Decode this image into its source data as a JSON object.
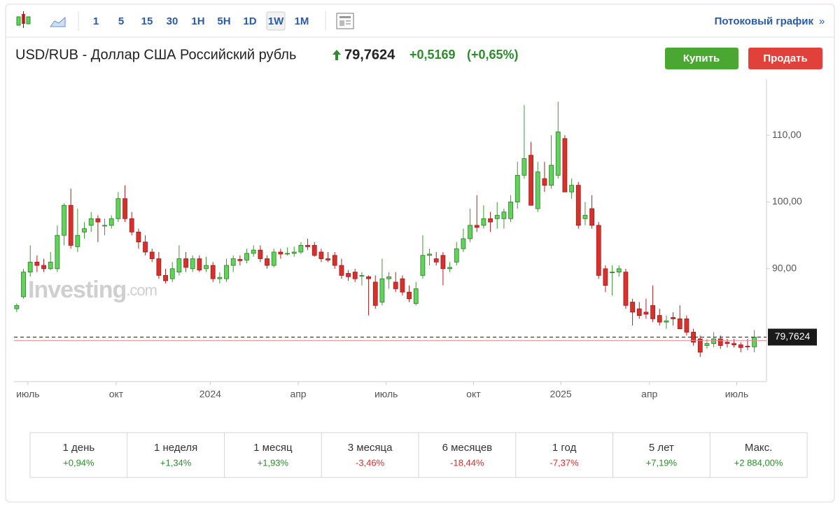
{
  "toolbar": {
    "intervals": [
      "1",
      "5",
      "15",
      "30",
      "1H",
      "5H",
      "1D",
      "1W",
      "1M"
    ],
    "active": "1W",
    "link": "Потоковый график",
    "link_arrow": "»"
  },
  "header": {
    "title": "USD/RUB - Доллар США Российский рубль",
    "price": "79,7624",
    "change": "+0,5169",
    "change_pct": "(+0,65%)"
  },
  "buttons": {
    "buy": "Купить",
    "sell": "Продать"
  },
  "watermark": {
    "brand": "Investing",
    "suffix": ".com"
  },
  "chart_data": {
    "type": "candlestick",
    "up_color": "#5fd35a",
    "down_color": "#d8312c",
    "open": [
      84,
      85.8,
      89.5,
      91,
      90.5,
      90,
      90,
      95,
      99.5,
      93.3,
      95.5,
      96.5,
      97.5,
      96.5,
      96.5,
      97.5,
      100.5,
      97.5,
      95.5,
      94,
      92.5,
      91.5,
      89,
      88.5,
      89.5,
      91.5,
      90,
      91.5,
      90,
      90.5,
      88.5,
      88.5,
      90.5,
      91.4,
      91.3,
      92.3,
      92.8,
      91.5,
      90.5,
      92.5,
      92.2,
      92.3,
      92.5,
      93.5,
      93.5,
      92.5,
      91.5,
      92,
      90.5,
      89.3,
      89.5,
      89,
      88.8,
      88,
      85,
      88.5,
      88,
      88.5,
      86.5,
      84.8,
      89,
      92,
      91.5,
      92,
      90,
      91,
      93,
      94.5,
      96.5,
      96.5,
      97.5,
      97.5,
      97.5,
      97.5,
      100,
      104,
      107,
      99,
      103.5,
      102.5,
      104,
      109.5,
      101.5,
      102.5,
      97.5,
      99,
      96.5,
      90,
      89.5,
      89.5,
      89.5,
      85,
      84,
      83.5,
      84.5,
      83,
      82,
      82.7,
      82.5,
      82.5,
      80.5,
      79.5,
      78.5,
      78.8,
      79.5,
      79,
      78.8,
      78.6,
      78.4,
      78.3
    ],
    "high": [
      84.8,
      90,
      93.5,
      92,
      91.5,
      92.5,
      96.5,
      99.8,
      102,
      99,
      97,
      98.5,
      98,
      97.5,
      98,
      101.5,
      102.5,
      98.5,
      96,
      95,
      93,
      92.5,
      90,
      91,
      93.5,
      92.5,
      92,
      92,
      91.8,
      91,
      89.5,
      91.5,
      92,
      92,
      93,
      93.5,
      93.5,
      92,
      93,
      93,
      93.2,
      93.3,
      94,
      94.5,
      94,
      93,
      92.5,
      92.5,
      91.5,
      89.8,
      90,
      89.5,
      89,
      89,
      91.5,
      89.5,
      89.5,
      89,
      87.5,
      88,
      95,
      93,
      92.5,
      92.5,
      91,
      94,
      96,
      99,
      101,
      99.5,
      98.5,
      100,
      99,
      101,
      106,
      114.5,
      109,
      106,
      106,
      110,
      115,
      110,
      103.5,
      103,
      100,
      101,
      97,
      90.5,
      90.5,
      90.5,
      90,
      85.5,
      85,
      85.5,
      87.5,
      84,
      83,
      83.5,
      84.5,
      83,
      81,
      80,
      79.5,
      80.5,
      80,
      79.5,
      79.5,
      79,
      79.5,
      80.8
    ],
    "low": [
      83.5,
      85.5,
      88.8,
      89.5,
      89.5,
      89.8,
      89.5,
      93.5,
      93,
      92.5,
      94.5,
      95.5,
      94,
      95,
      96,
      97,
      97,
      95,
      93,
      92,
      91,
      88.5,
      87.8,
      88,
      89,
      89.5,
      89.5,
      89.5,
      89.5,
      88,
      87.8,
      88,
      89.5,
      90.5,
      90.8,
      91.8,
      91,
      90,
      90.2,
      91.5,
      92,
      91.8,
      92.2,
      92.8,
      91.8,
      91,
      91,
      90,
      88.5,
      88.2,
      88,
      87.5,
      83,
      84,
      84.5,
      87,
      86.5,
      86,
      85,
      84.5,
      88.5,
      90.5,
      90.5,
      87.5,
      89.5,
      90.5,
      92.5,
      94,
      95.5,
      96,
      95.5,
      96,
      96,
      97,
      99,
      103.5,
      99.5,
      98.5,
      101.5,
      102,
      103.5,
      101.5,
      100.5,
      96,
      96.5,
      96,
      88.5,
      86.5,
      86,
      88.8,
      84,
      81.5,
      82.5,
      82.5,
      82,
      81.5,
      81,
      81.5,
      81,
      80,
      78.5,
      76.8,
      78,
      78.2,
      78,
      78.2,
      78.2,
      77.5,
      77.8,
      77.5
    ],
    "close": [
      84.5,
      89.5,
      91,
      90.5,
      90,
      91,
      95,
      99.5,
      93.5,
      95,
      96,
      97.5,
      97,
      96.5,
      97.5,
      100.5,
      97.5,
      95.5,
      94,
      92.5,
      91.5,
      89,
      88.2,
      90,
      91.5,
      90.2,
      91.5,
      89.8,
      90.5,
      88.5,
      88.7,
      90.5,
      91.5,
      91.2,
      92.3,
      92.8,
      91.5,
      90.5,
      92.5,
      92.2,
      92.3,
      92.5,
      93.5,
      93.3,
      92,
      91.5,
      91.3,
      90.5,
      89,
      88.8,
      88.5,
      89,
      88.5,
      84.5,
      88.5,
      88.8,
      87,
      86.5,
      85.5,
      87,
      92,
      92.2,
      91,
      90,
      90.2,
      93,
      94.5,
      96.5,
      96.2,
      97.5,
      97,
      98,
      98.5,
      100,
      104,
      106.5,
      99.5,
      104.5,
      102.5,
      105.5,
      110.5,
      101.5,
      102.5,
      96.5,
      98,
      96.5,
      89,
      87.5,
      89.5,
      90,
      84.5,
      83.5,
      83,
      83.2,
      82.5,
      82,
      82.2,
      82.5,
      81,
      80.5,
      79,
      77.5,
      78.8,
      79.5,
      78.5,
      78.8,
      78.6,
      78.2,
      78.3,
      79.76
    ],
    "xlim": [
      -0.4,
      110.8
    ],
    "xticks": [
      {
        "value": 1.65,
        "label": "июль"
      },
      {
        "value": 14.7,
        "label": "окт"
      },
      {
        "value": 28.6,
        "label": "2024"
      },
      {
        "value": 41.6,
        "label": "апр"
      },
      {
        "value": 54.6,
        "label": "июль"
      },
      {
        "value": 67.5,
        "label": "окт"
      },
      {
        "value": 80.4,
        "label": "2025"
      },
      {
        "value": 93.5,
        "label": "апр"
      },
      {
        "value": 106.4,
        "label": "июль"
      }
    ],
    "ylim": [
      73.1,
      118.4
    ],
    "yticks": [
      {
        "value": 90,
        "label": "90,00"
      },
      {
        "value": 100,
        "label": "100,00"
      },
      {
        "value": 110,
        "label": "110,00"
      }
    ],
    "last_price": 79.7624,
    "last_price_label": "79,7624",
    "prev_close_line": 79.2455
  },
  "performance": [
    {
      "period": "1 день",
      "change": "+0,94%"
    },
    {
      "period": "1 неделя",
      "change": "+1,34%"
    },
    {
      "period": "1 месяц",
      "change": "+1,93%"
    },
    {
      "period": "3 месяца",
      "change": "-3,46%"
    },
    {
      "period": "6 месяцев",
      "change": "-18,44%"
    },
    {
      "period": "1 год",
      "change": "-7,37%"
    },
    {
      "period": "5 лет",
      "change": "+7,19%"
    },
    {
      "period": "Макс.",
      "change": "+2 884,00%"
    }
  ]
}
